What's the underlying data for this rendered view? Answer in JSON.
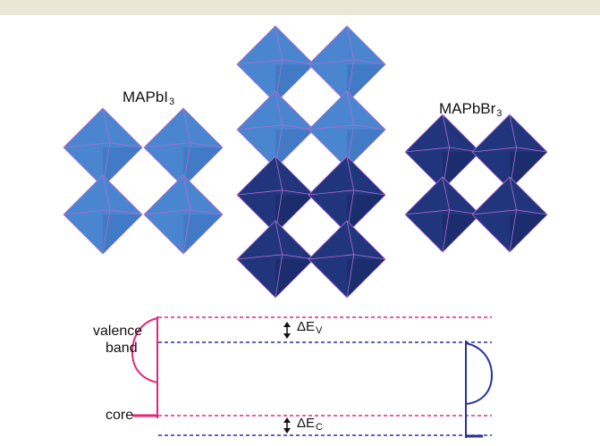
{
  "labels": {
    "left_compound": {
      "base": "MAPbI",
      "sub": "3"
    },
    "right_compound": {
      "base": "MAPbBr",
      "sub": "3"
    },
    "valence_band_line1": "valence",
    "valence_band_line2": "band",
    "core": "core",
    "delta_v": {
      "base": "ΔE",
      "sub": "V"
    },
    "delta_c": {
      "base": "ΔE",
      "sub": "C"
    }
  },
  "colors": {
    "header_bar": "#ece6d6",
    "light_octahedra": "#4a86d0",
    "light_octahedra_shade": "#3a72bc",
    "dark_octahedra": "#21357d",
    "dark_octahedra_shade": "#172760",
    "edge_lines": "#b46ad0",
    "mapbi3_levels": "#e8247a",
    "mapbbr3_levels": "#25349a"
  }
}
